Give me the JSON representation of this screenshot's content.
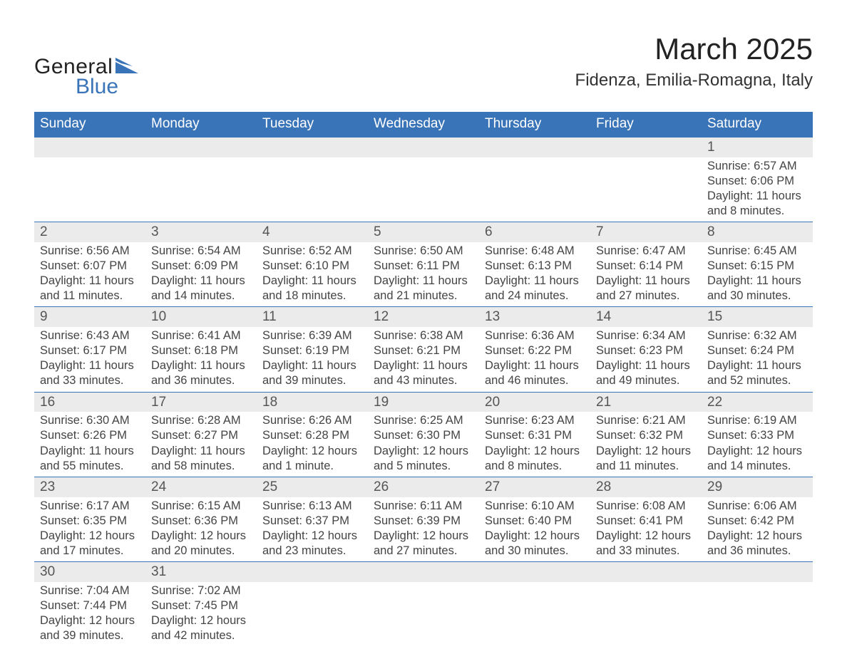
{
  "logo": {
    "part1": "General",
    "part2": "Blue",
    "accent_color": "#3a74b8"
  },
  "title": "March 2025",
  "location": "Fidenza, Emilia-Romagna, Italy",
  "header_bg": "#3a74b8",
  "daynum_bg": "#ebebeb",
  "border_color": "#3a74b8",
  "week_header_fontsize": 19,
  "daynum_fontsize": 19,
  "detail_fontsize": 16.5,
  "weekdays": [
    "Sunday",
    "Monday",
    "Tuesday",
    "Wednesday",
    "Thursday",
    "Friday",
    "Saturday"
  ],
  "weeks": [
    [
      null,
      null,
      null,
      null,
      null,
      null,
      {
        "n": "1",
        "sunrise": "Sunrise: 6:57 AM",
        "sunset": "Sunset: 6:06 PM",
        "day1": "Daylight: 11 hours",
        "day2": "and 8 minutes."
      }
    ],
    [
      {
        "n": "2",
        "sunrise": "Sunrise: 6:56 AM",
        "sunset": "Sunset: 6:07 PM",
        "day1": "Daylight: 11 hours",
        "day2": "and 11 minutes."
      },
      {
        "n": "3",
        "sunrise": "Sunrise: 6:54 AM",
        "sunset": "Sunset: 6:09 PM",
        "day1": "Daylight: 11 hours",
        "day2": "and 14 minutes."
      },
      {
        "n": "4",
        "sunrise": "Sunrise: 6:52 AM",
        "sunset": "Sunset: 6:10 PM",
        "day1": "Daylight: 11 hours",
        "day2": "and 18 minutes."
      },
      {
        "n": "5",
        "sunrise": "Sunrise: 6:50 AM",
        "sunset": "Sunset: 6:11 PM",
        "day1": "Daylight: 11 hours",
        "day2": "and 21 minutes."
      },
      {
        "n": "6",
        "sunrise": "Sunrise: 6:48 AM",
        "sunset": "Sunset: 6:13 PM",
        "day1": "Daylight: 11 hours",
        "day2": "and 24 minutes."
      },
      {
        "n": "7",
        "sunrise": "Sunrise: 6:47 AM",
        "sunset": "Sunset: 6:14 PM",
        "day1": "Daylight: 11 hours",
        "day2": "and 27 minutes."
      },
      {
        "n": "8",
        "sunrise": "Sunrise: 6:45 AM",
        "sunset": "Sunset: 6:15 PM",
        "day1": "Daylight: 11 hours",
        "day2": "and 30 minutes."
      }
    ],
    [
      {
        "n": "9",
        "sunrise": "Sunrise: 6:43 AM",
        "sunset": "Sunset: 6:17 PM",
        "day1": "Daylight: 11 hours",
        "day2": "and 33 minutes."
      },
      {
        "n": "10",
        "sunrise": "Sunrise: 6:41 AM",
        "sunset": "Sunset: 6:18 PM",
        "day1": "Daylight: 11 hours",
        "day2": "and 36 minutes."
      },
      {
        "n": "11",
        "sunrise": "Sunrise: 6:39 AM",
        "sunset": "Sunset: 6:19 PM",
        "day1": "Daylight: 11 hours",
        "day2": "and 39 minutes."
      },
      {
        "n": "12",
        "sunrise": "Sunrise: 6:38 AM",
        "sunset": "Sunset: 6:21 PM",
        "day1": "Daylight: 11 hours",
        "day2": "and 43 minutes."
      },
      {
        "n": "13",
        "sunrise": "Sunrise: 6:36 AM",
        "sunset": "Sunset: 6:22 PM",
        "day1": "Daylight: 11 hours",
        "day2": "and 46 minutes."
      },
      {
        "n": "14",
        "sunrise": "Sunrise: 6:34 AM",
        "sunset": "Sunset: 6:23 PM",
        "day1": "Daylight: 11 hours",
        "day2": "and 49 minutes."
      },
      {
        "n": "15",
        "sunrise": "Sunrise: 6:32 AM",
        "sunset": "Sunset: 6:24 PM",
        "day1": "Daylight: 11 hours",
        "day2": "and 52 minutes."
      }
    ],
    [
      {
        "n": "16",
        "sunrise": "Sunrise: 6:30 AM",
        "sunset": "Sunset: 6:26 PM",
        "day1": "Daylight: 11 hours",
        "day2": "and 55 minutes."
      },
      {
        "n": "17",
        "sunrise": "Sunrise: 6:28 AM",
        "sunset": "Sunset: 6:27 PM",
        "day1": "Daylight: 11 hours",
        "day2": "and 58 minutes."
      },
      {
        "n": "18",
        "sunrise": "Sunrise: 6:26 AM",
        "sunset": "Sunset: 6:28 PM",
        "day1": "Daylight: 12 hours",
        "day2": "and 1 minute."
      },
      {
        "n": "19",
        "sunrise": "Sunrise: 6:25 AM",
        "sunset": "Sunset: 6:30 PM",
        "day1": "Daylight: 12 hours",
        "day2": "and 5 minutes."
      },
      {
        "n": "20",
        "sunrise": "Sunrise: 6:23 AM",
        "sunset": "Sunset: 6:31 PM",
        "day1": "Daylight: 12 hours",
        "day2": "and 8 minutes."
      },
      {
        "n": "21",
        "sunrise": "Sunrise: 6:21 AM",
        "sunset": "Sunset: 6:32 PM",
        "day1": "Daylight: 12 hours",
        "day2": "and 11 minutes."
      },
      {
        "n": "22",
        "sunrise": "Sunrise: 6:19 AM",
        "sunset": "Sunset: 6:33 PM",
        "day1": "Daylight: 12 hours",
        "day2": "and 14 minutes."
      }
    ],
    [
      {
        "n": "23",
        "sunrise": "Sunrise: 6:17 AM",
        "sunset": "Sunset: 6:35 PM",
        "day1": "Daylight: 12 hours",
        "day2": "and 17 minutes."
      },
      {
        "n": "24",
        "sunrise": "Sunrise: 6:15 AM",
        "sunset": "Sunset: 6:36 PM",
        "day1": "Daylight: 12 hours",
        "day2": "and 20 minutes."
      },
      {
        "n": "25",
        "sunrise": "Sunrise: 6:13 AM",
        "sunset": "Sunset: 6:37 PM",
        "day1": "Daylight: 12 hours",
        "day2": "and 23 minutes."
      },
      {
        "n": "26",
        "sunrise": "Sunrise: 6:11 AM",
        "sunset": "Sunset: 6:39 PM",
        "day1": "Daylight: 12 hours",
        "day2": "and 27 minutes."
      },
      {
        "n": "27",
        "sunrise": "Sunrise: 6:10 AM",
        "sunset": "Sunset: 6:40 PM",
        "day1": "Daylight: 12 hours",
        "day2": "and 30 minutes."
      },
      {
        "n": "28",
        "sunrise": "Sunrise: 6:08 AM",
        "sunset": "Sunset: 6:41 PM",
        "day1": "Daylight: 12 hours",
        "day2": "and 33 minutes."
      },
      {
        "n": "29",
        "sunrise": "Sunrise: 6:06 AM",
        "sunset": "Sunset: 6:42 PM",
        "day1": "Daylight: 12 hours",
        "day2": "and 36 minutes."
      }
    ],
    [
      {
        "n": "30",
        "sunrise": "Sunrise: 7:04 AM",
        "sunset": "Sunset: 7:44 PM",
        "day1": "Daylight: 12 hours",
        "day2": "and 39 minutes."
      },
      {
        "n": "31",
        "sunrise": "Sunrise: 7:02 AM",
        "sunset": "Sunset: 7:45 PM",
        "day1": "Daylight: 12 hours",
        "day2": "and 42 minutes."
      },
      null,
      null,
      null,
      null,
      null
    ]
  ]
}
